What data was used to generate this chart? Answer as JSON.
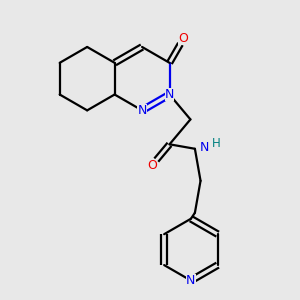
{
  "background_color": "#e8e8e8",
  "bond_color": "#000000",
  "N_color": "#0000ee",
  "O_color": "#ee0000",
  "H_color": "#008080",
  "line_width": 1.6,
  "figsize": [
    3.0,
    3.0
  ],
  "dpi": 100,
  "xlim": [
    0.5,
    6.5
  ],
  "ylim": [
    1.0,
    8.5
  ]
}
